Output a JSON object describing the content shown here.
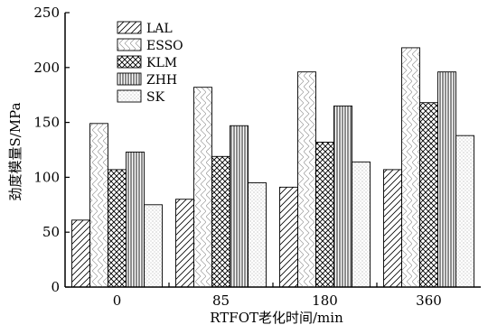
{
  "chart_data": {
    "type": "bar",
    "title": "",
    "xlabel": "RTFOT老化时间/min",
    "ylabel": "劲度模量S/MPa",
    "ylim": [
      0,
      250
    ],
    "yticks": [
      0,
      50,
      100,
      150,
      200,
      250
    ],
    "categories": [
      "0",
      "85",
      "180",
      "360"
    ],
    "grid": false,
    "legend_position": "top-left",
    "series": [
      {
        "name": "LAL",
        "pattern": "diagonal",
        "values": [
          61,
          80,
          91,
          107
        ]
      },
      {
        "name": "ESSO",
        "pattern": "zigzag",
        "values": [
          149,
          182,
          196,
          218
        ]
      },
      {
        "name": "KLM",
        "pattern": "crosshatch",
        "values": [
          107,
          119,
          132,
          168
        ]
      },
      {
        "name": "ZHH",
        "pattern": "vertical",
        "values": [
          123,
          147,
          165,
          196
        ]
      },
      {
        "name": "SK",
        "pattern": "dots",
        "values": [
          75,
          95,
          114,
          138
        ]
      }
    ]
  }
}
